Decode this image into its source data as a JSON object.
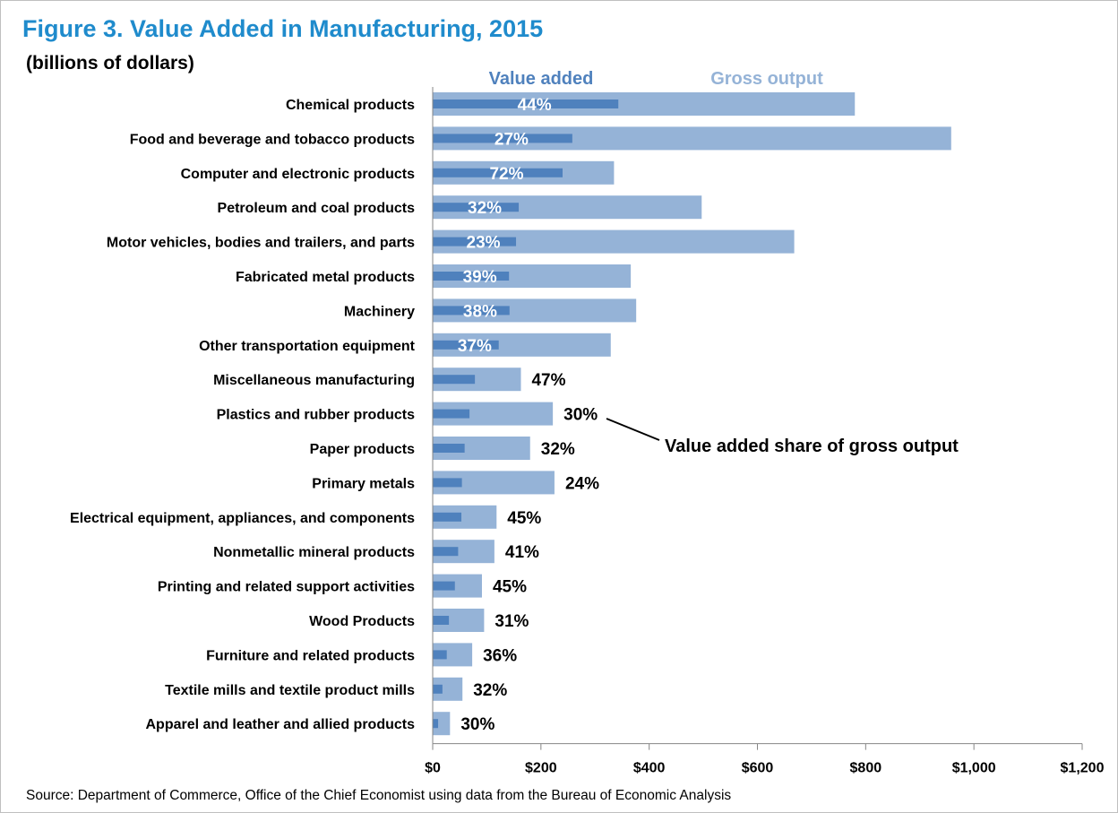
{
  "title": "Figure 3. Value Added in Manufacturing, 2015",
  "subtitle": "(billions of dollars)",
  "source": "Source: Department of Commerce, Office of the Chief Economist using data from the Bureau of Economic Analysis",
  "colors": {
    "title": "#1f8bcc",
    "gross_output": "#95b3d7",
    "value_added": "#4f81bd",
    "axis": "#868686"
  },
  "chart_data": {
    "type": "bar",
    "orientation": "horizontal",
    "categories": [
      "Chemical products",
      "Food and beverage and tobacco products",
      "Computer and electronic products",
      "Petroleum and coal products",
      "Motor vehicles, bodies and trailers, and parts",
      "Fabricated metal products",
      "Machinery",
      "Other transportation equipment",
      "Miscellaneous manufacturing",
      "Plastics and rubber products",
      "Paper products",
      "Primary metals",
      "Electrical equipment, appliances, and components",
      "Nonmetallic mineral products",
      "Printing and related support activities",
      "Wood Products",
      "Furniture and related products",
      "Textile mills and textile product mills",
      "Apparel and leather and allied products"
    ],
    "series": [
      {
        "name": "Value added",
        "values": [
          343,
          258,
          240,
          159,
          154,
          141,
          142,
          122,
          78,
          68,
          59,
          54,
          53,
          47,
          41,
          30,
          26,
          18,
          10
        ]
      },
      {
        "name": "Gross output",
        "values": [
          780,
          958,
          335,
          497,
          668,
          366,
          376,
          329,
          163,
          222,
          180,
          225,
          118,
          114,
          91,
          95,
          73,
          55,
          32
        ]
      }
    ],
    "share_labels": [
      "44%",
      "27%",
      "72%",
      "32%",
      "23%",
      "39%",
      "38%",
      "37%",
      "47%",
      "30%",
      "32%",
      "24%",
      "45%",
      "41%",
      "45%",
      "31%",
      "36%",
      "32%",
      "30%"
    ],
    "annotation": "Value added share of gross output",
    "x_ticks": [
      "$0",
      "$200",
      "$400",
      "$600",
      "$800",
      "$1,000",
      "$1,200"
    ],
    "xlim": [
      0,
      1200
    ],
    "grid": false,
    "legend_position": "top"
  }
}
